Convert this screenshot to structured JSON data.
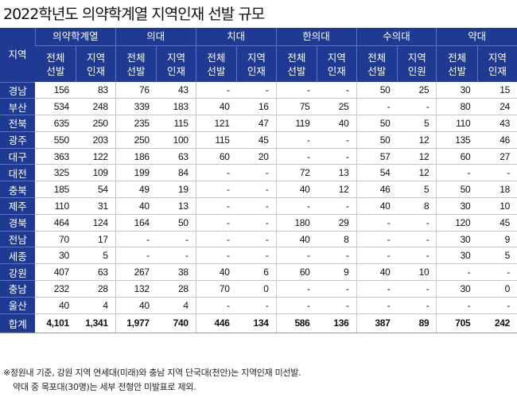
{
  "title": "2022학년도 의약학계열 지역인재 선발 규모",
  "header": {
    "region_label": "지역",
    "groups": [
      "의약학계열",
      "의대",
      "치대",
      "한의대",
      "수의대",
      "약대"
    ],
    "sub": [
      [
        "전체",
        "선발"
      ],
      [
        "지역",
        "인재"
      ],
      [
        "전체",
        "선발"
      ],
      [
        "지역",
        "인재"
      ],
      [
        "전체",
        "선발"
      ],
      [
        "지역",
        "인재"
      ],
      [
        "전체",
        "선발"
      ],
      [
        "지역",
        "인재"
      ],
      [
        "전체",
        "선발"
      ],
      [
        "지역",
        "인원"
      ],
      [
        "전체",
        "선발"
      ],
      [
        "지역",
        "인재"
      ]
    ]
  },
  "rows": [
    {
      "region": "경남",
      "values": [
        "156",
        "83",
        "76",
        "43",
        "-",
        "-",
        "-",
        "-",
        "50",
        "25",
        "30",
        "15"
      ]
    },
    {
      "region": "부산",
      "values": [
        "534",
        "248",
        "339",
        "183",
        "40",
        "16",
        "75",
        "25",
        "-",
        "-",
        "80",
        "24"
      ]
    },
    {
      "region": "전북",
      "values": [
        "635",
        "250",
        "235",
        "115",
        "121",
        "47",
        "119",
        "40",
        "50",
        "5",
        "110",
        "43"
      ]
    },
    {
      "region": "광주",
      "values": [
        "550",
        "203",
        "250",
        "100",
        "115",
        "45",
        "-",
        "-",
        "50",
        "12",
        "135",
        "46"
      ]
    },
    {
      "region": "대구",
      "values": [
        "363",
        "122",
        "186",
        "63",
        "60",
        "20",
        "-",
        "-",
        "57",
        "12",
        "60",
        "27"
      ]
    },
    {
      "region": "대전",
      "values": [
        "325",
        "109",
        "199",
        "84",
        "-",
        "-",
        "72",
        "13",
        "54",
        "12",
        "-",
        "-"
      ]
    },
    {
      "region": "충북",
      "values": [
        "185",
        "54",
        "49",
        "19",
        "-",
        "-",
        "40",
        "12",
        "46",
        "5",
        "50",
        "18"
      ]
    },
    {
      "region": "제주",
      "values": [
        "110",
        "31",
        "40",
        "13",
        "-",
        "-",
        "-",
        "-",
        "40",
        "8",
        "30",
        "10"
      ]
    },
    {
      "region": "경북",
      "values": [
        "464",
        "124",
        "164",
        "50",
        "-",
        "-",
        "180",
        "29",
        "-",
        "-",
        "120",
        "45"
      ]
    },
    {
      "region": "전남",
      "values": [
        "70",
        "17",
        "-",
        "-",
        "-",
        "-",
        "40",
        "8",
        "-",
        "-",
        "30",
        "9"
      ]
    },
    {
      "region": "세종",
      "values": [
        "30",
        "5",
        "-",
        "-",
        "-",
        "-",
        "-",
        "-",
        "-",
        "-",
        "30",
        "5"
      ]
    },
    {
      "region": "강원",
      "values": [
        "407",
        "63",
        "267",
        "38",
        "40",
        "6",
        "60",
        "9",
        "40",
        "10",
        "-",
        "-"
      ]
    },
    {
      "region": "충남",
      "values": [
        "232",
        "28",
        "132",
        "28",
        "70",
        "0",
        "-",
        "-",
        "-",
        "-",
        "30",
        "0"
      ]
    },
    {
      "region": "울산",
      "values": [
        "40",
        "4",
        "40",
        "4",
        "-",
        "-",
        "-",
        "-",
        "-",
        "-",
        "-",
        "-"
      ]
    }
  ],
  "total": {
    "region": "합계",
    "values": [
      "4,101",
      "1,341",
      "1,977",
      "740",
      "446",
      "134",
      "586",
      "136",
      "387",
      "89",
      "705",
      "242"
    ]
  },
  "notes": [
    "※정원내 기준, 강원 지역 연세대(미래)와 충남 지역 단국대(천안)는 지역인재 미선발.",
    "약대 중 목포대(30명)는 세부 전형안 미발표로 제외."
  ],
  "colors": {
    "header_bg": "#1f3a93",
    "header_text": "#ffffff",
    "row_line": "#c7c7c7"
  }
}
